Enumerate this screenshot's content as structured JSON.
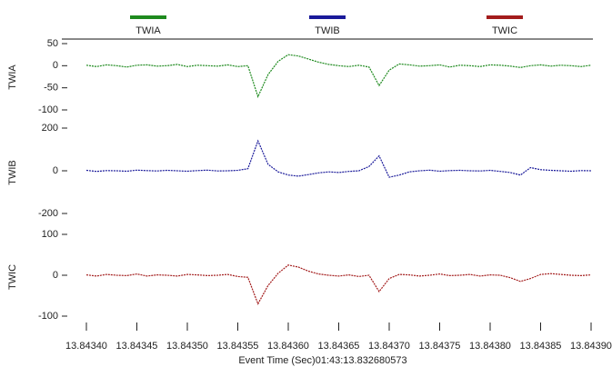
{
  "chart_data": [
    {
      "type": "line",
      "ylabel": "TWIA",
      "ylim": [
        -100,
        50
      ],
      "yticks": [
        50,
        0,
        -50,
        -100
      ],
      "x": [
        13.8434,
        13.84341,
        13.84342,
        13.84343,
        13.84344,
        13.84345,
        13.84346,
        13.84347,
        13.84348,
        13.84349,
        13.8435,
        13.84351,
        13.84352,
        13.84353,
        13.84354,
        13.84355,
        13.84356,
        13.84357,
        13.84358,
        13.84359,
        13.8436,
        13.84361,
        13.84362,
        13.84363,
        13.84364,
        13.84365,
        13.84366,
        13.84367,
        13.84368,
        13.84369,
        13.8437,
        13.84371,
        13.84372,
        13.84373,
        13.84374,
        13.84375,
        13.84376,
        13.84377,
        13.84378,
        13.84379,
        13.8438,
        13.84381,
        13.84382,
        13.84383,
        13.84384,
        13.84385,
        13.84386,
        13.84387,
        13.84388,
        13.84389,
        13.8439
      ],
      "series": [
        {
          "name": "TWIA",
          "color": "#1e8a1e",
          "values": [
            1,
            -2,
            2,
            0,
            -3,
            1,
            2,
            -1,
            0,
            3,
            -2,
            1,
            0,
            -1,
            2,
            -2,
            0,
            -70,
            -20,
            10,
            25,
            22,
            15,
            8,
            3,
            0,
            -2,
            1,
            -3,
            -45,
            -10,
            4,
            2,
            -1,
            0,
            2,
            -3,
            1,
            0,
            -2,
            2,
            1,
            -1,
            -4,
            0,
            2,
            -1,
            1,
            0,
            -2,
            1
          ]
        }
      ]
    },
    {
      "type": "line",
      "ylabel": "TWIB",
      "ylim": [
        -200,
        200
      ],
      "yticks": [
        200,
        0,
        -200
      ],
      "x": [
        13.8434,
        13.84341,
        13.84342,
        13.84343,
        13.84344,
        13.84345,
        13.84346,
        13.84347,
        13.84348,
        13.84349,
        13.8435,
        13.84351,
        13.84352,
        13.84353,
        13.84354,
        13.84355,
        13.84356,
        13.84357,
        13.84358,
        13.84359,
        13.8436,
        13.84361,
        13.84362,
        13.84363,
        13.84364,
        13.84365,
        13.84366,
        13.84367,
        13.84368,
        13.84369,
        13.8437,
        13.84371,
        13.84372,
        13.84373,
        13.84374,
        13.84375,
        13.84376,
        13.84377,
        13.84378,
        13.84379,
        13.8438,
        13.84381,
        13.84382,
        13.84383,
        13.84384,
        13.84385,
        13.84386,
        13.84387,
        13.84388,
        13.84389,
        13.8439
      ],
      "series": [
        {
          "name": "TWIB",
          "color": "#1a1a9a",
          "values": [
            2,
            -3,
            1,
            0,
            -2,
            3,
            1,
            -1,
            2,
            0,
            -2,
            1,
            3,
            -1,
            0,
            2,
            10,
            140,
            30,
            -5,
            -20,
            -25,
            -18,
            -10,
            -5,
            -8,
            -3,
            0,
            20,
            70,
            -30,
            -20,
            -5,
            0,
            3,
            -2,
            1,
            2,
            0,
            -1,
            2,
            -3,
            -8,
            -20,
            15,
            5,
            2,
            0,
            -2,
            1,
            0
          ]
        }
      ]
    },
    {
      "type": "line",
      "ylabel": "TWIC",
      "ylim": [
        -100,
        100
      ],
      "yticks": [
        100,
        0,
        -100
      ],
      "x": [
        13.8434,
        13.84341,
        13.84342,
        13.84343,
        13.84344,
        13.84345,
        13.84346,
        13.84347,
        13.84348,
        13.84349,
        13.8435,
        13.84351,
        13.84352,
        13.84353,
        13.84354,
        13.84355,
        13.84356,
        13.84357,
        13.84358,
        13.84359,
        13.8436,
        13.84361,
        13.84362,
        13.84363,
        13.84364,
        13.84365,
        13.84366,
        13.84367,
        13.84368,
        13.84369,
        13.8437,
        13.84371,
        13.84372,
        13.84373,
        13.84374,
        13.84375,
        13.84376,
        13.84377,
        13.84378,
        13.84379,
        13.8438,
        13.84381,
        13.84382,
        13.84383,
        13.84384,
        13.84385,
        13.84386,
        13.84387,
        13.84388,
        13.84389,
        13.8439
      ],
      "series": [
        {
          "name": "TWIC",
          "color": "#a31c1c",
          "values": [
            1,
            -2,
            2,
            0,
            -1,
            3,
            -2,
            1,
            0,
            -2,
            2,
            1,
            -1,
            0,
            2,
            -3,
            -5,
            -70,
            -25,
            5,
            25,
            20,
            10,
            3,
            0,
            -2,
            1,
            -3,
            0,
            -40,
            -8,
            2,
            1,
            -2,
            0,
            3,
            -1,
            0,
            2,
            -2,
            1,
            0,
            -6,
            -15,
            -8,
            2,
            4,
            2,
            0,
            -1,
            1
          ]
        }
      ],
      "xlabel": "Event Time (Sec)01:43:13.832680573",
      "xlim": [
        13.8434,
        13.8439
      ],
      "xticks": [
        {
          "value": 13.8434,
          "label": "13.84340"
        },
        13.84345,
        {
          "value": 13.8435,
          "label": "13.84350"
        },
        13.84355,
        {
          "value": 13.8436,
          "label": "13.84360"
        },
        13.84365,
        {
          "value": 13.8437,
          "label": "13.84370"
        },
        13.84375,
        {
          "value": 13.8438,
          "label": "13.84380"
        },
        13.84385,
        {
          "value": 13.8439,
          "label": "13.84390"
        }
      ]
    }
  ]
}
